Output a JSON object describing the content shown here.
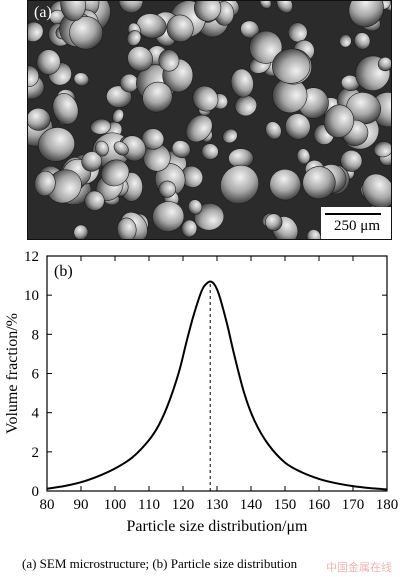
{
  "panel_a": {
    "label": "(a)",
    "scale_bar": "250 μm"
  },
  "chart_data": {
    "type": "line",
    "panel_label": "(b)",
    "xlabel": "Particle size distribution/μm",
    "ylabel": "Volume fraction/%",
    "xlim": [
      80,
      180
    ],
    "ylim": [
      0,
      12
    ],
    "xticks": [
      80,
      90,
      100,
      110,
      120,
      130,
      140,
      150,
      160,
      170,
      180
    ],
    "yticks": [
      0,
      2,
      4,
      6,
      8,
      10,
      12
    ],
    "grid": false,
    "series": [
      {
        "x": [
          80,
          85,
          90,
          95,
          100,
          105,
          110,
          113,
          116,
          119,
          121,
          123,
          125,
          126,
          127,
          128,
          129,
          130,
          131,
          133,
          135,
          138,
          141,
          145,
          150,
          155,
          160,
          165,
          170,
          175,
          180
        ],
        "y": [
          0.12,
          0.25,
          0.45,
          0.75,
          1.15,
          1.7,
          2.6,
          3.4,
          4.6,
          6.2,
          7.6,
          8.9,
          10.0,
          10.4,
          10.6,
          10.7,
          10.6,
          10.3,
          9.8,
          8.5,
          7.0,
          5.0,
          3.6,
          2.4,
          1.45,
          0.95,
          0.62,
          0.4,
          0.25,
          0.15,
          0.08
        ]
      }
    ],
    "annotations": [
      {
        "type": "vertical-dashed-line",
        "x": 128
      }
    ]
  },
  "caption": "(a)  SEM microstructure; (b) Particle size distribution",
  "watermark": "中国金属在线"
}
